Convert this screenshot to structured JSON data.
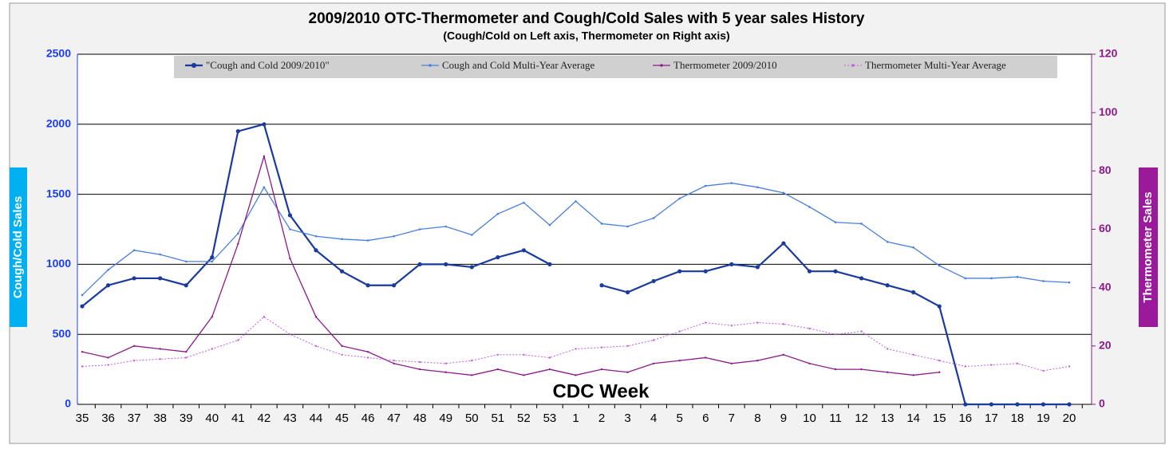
{
  "chart_data": {
    "type": "line",
    "title": "2009/2010 OTC-Thermometer and Cough/Cold Sales with 5 year sales History",
    "subtitle": "(Cough/Cold on Left axis, Thermometer on Right axis)",
    "x_label": "CDC Week",
    "y_label": "Cough/Cold Sales",
    "y2_label": "Thermometer Sales",
    "categories": [
      "35",
      "36",
      "37",
      "38",
      "39",
      "40",
      "41",
      "42",
      "43",
      "44",
      "45",
      "46",
      "47",
      "48",
      "49",
      "50",
      "51",
      "52",
      "53",
      "1",
      "2",
      "3",
      "4",
      "5",
      "6",
      "7",
      "8",
      "9",
      "10",
      "11",
      "12",
      "13",
      "14",
      "15",
      "16",
      "17",
      "18",
      "19",
      "20"
    ],
    "ylim": [
      0,
      2500
    ],
    "yticks": [
      0,
      500,
      1000,
      1500,
      2000,
      2500
    ],
    "y2lim": [
      0,
      120
    ],
    "y2ticks": [
      0,
      20,
      40,
      60,
      80,
      100,
      120
    ],
    "grid": true,
    "series": [
      {
        "name": "\"Cough and Cold 2009/2010\"",
        "color": "#1a3a9c",
        "axis": "y",
        "values": [
          700,
          850,
          900,
          900,
          850,
          1050,
          1950,
          2000,
          1350,
          1100,
          950,
          850,
          850,
          1000,
          1000,
          980,
          1050,
          1100,
          1000,
          null,
          850,
          800,
          880,
          950,
          950,
          1000,
          980,
          1150,
          950,
          950,
          900,
          850,
          800,
          700,
          0,
          0,
          0,
          0,
          0
        ]
      },
      {
        "name": "Cough and Cold Multi-Year Average",
        "color": "#4a7fe0",
        "axis": "y",
        "values": [
          780,
          960,
          1100,
          1070,
          1020,
          1020,
          1220,
          1550,
          1250,
          1200,
          1180,
          1170,
          1200,
          1250,
          1270,
          1210,
          1360,
          1440,
          1280,
          1450,
          1290,
          1270,
          1330,
          1470,
          1560,
          1580,
          1550,
          1510,
          1410,
          1300,
          1290,
          1160,
          1120,
          990,
          900,
          900,
          910,
          880,
          870
        ]
      },
      {
        "name": "Thermometer 2009/2010",
        "color": "#8b1a8b",
        "axis": "y2",
        "values": [
          18,
          16,
          20,
          19,
          18,
          30,
          55,
          85,
          50,
          30,
          20,
          18,
          14,
          12,
          11,
          10,
          12,
          10,
          12,
          10,
          12,
          11,
          14,
          15,
          16,
          14,
          15,
          17,
          14,
          12,
          12,
          11,
          10,
          11,
          null,
          null,
          null,
          null,
          null
        ]
      },
      {
        "name": "Thermometer Multi-Year Average",
        "color": "#c060e0",
        "axis": "y2",
        "values": [
          13,
          13.5,
          15,
          15.5,
          16,
          19,
          22,
          30,
          24,
          20,
          17,
          16,
          15,
          14.5,
          14,
          15,
          17,
          17,
          16,
          19,
          19.5,
          20,
          22,
          25,
          28,
          27,
          28,
          27.5,
          26,
          24,
          25,
          19,
          17,
          15,
          13,
          13.5,
          14,
          11.5,
          13
        ]
      }
    ]
  }
}
